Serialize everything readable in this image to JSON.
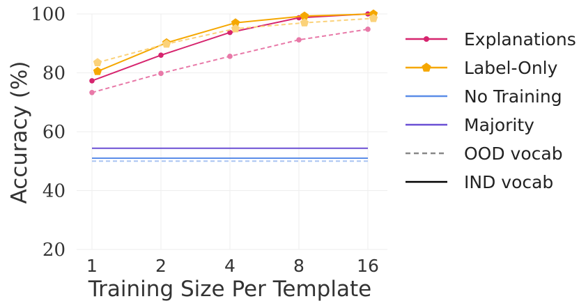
{
  "chart_data": {
    "type": "line",
    "xlabel": "Training Size Per Template",
    "ylabel": "Accuracy (%)",
    "x": [
      1,
      2,
      4,
      8,
      16
    ],
    "x_scale": "log2",
    "ylim": [
      20,
      100
    ],
    "yticks": [
      20,
      40,
      60,
      80,
      100
    ],
    "grid": true,
    "legend_position": "right",
    "series": [
      {
        "name": "Explanations",
        "vocab": "IND",
        "color": "#d6246e",
        "marker": "circle",
        "values": [
          77.3,
          86.0,
          93.7,
          98.7,
          100.0
        ]
      },
      {
        "name": "Explanations",
        "vocab": "OOD",
        "color": "#e879a8",
        "marker": "circle",
        "values": [
          73.3,
          79.8,
          85.6,
          91.2,
          94.8
        ]
      },
      {
        "name": "Label-Only",
        "vocab": "IND",
        "color": "#f5a700",
        "marker": "pentagon",
        "values": [
          80.5,
          90.2,
          97.0,
          99.3,
          100.0
        ]
      },
      {
        "name": "Label-Only",
        "vocab": "OOD",
        "color": "#fbd27a",
        "marker": "pentagon",
        "values": [
          83.5,
          89.8,
          95.0,
          97.0,
          98.5
        ]
      },
      {
        "name": "No Training",
        "vocab": "IND",
        "color": "#5b8de8",
        "marker": "none",
        "values": [
          51.0,
          51.0,
          51.0,
          51.0,
          51.0
        ]
      },
      {
        "name": "No Training",
        "vocab": "OOD",
        "color": "#a9c4f2",
        "marker": "none",
        "values": [
          50.0,
          50.0,
          50.0,
          50.0,
          50.0
        ]
      },
      {
        "name": "Majority",
        "vocab": "IND",
        "color": "#6a4fd4",
        "marker": "none",
        "values": [
          54.4,
          54.4,
          54.4,
          54.4,
          54.4
        ]
      }
    ],
    "legend": [
      {
        "label": "Explanations",
        "style": "line-circle",
        "color": "#d6246e"
      },
      {
        "label": "Label-Only",
        "style": "line-pentagon",
        "color": "#f5a700"
      },
      {
        "label": "No Training",
        "style": "line",
        "color": "#5b8de8"
      },
      {
        "label": "Majority",
        "style": "line",
        "color": "#6a4fd4"
      },
      {
        "label": "OOD vocab",
        "style": "dashed",
        "color": "#888888"
      },
      {
        "label": "IND vocab",
        "style": "solid",
        "color": "#000000"
      }
    ]
  }
}
